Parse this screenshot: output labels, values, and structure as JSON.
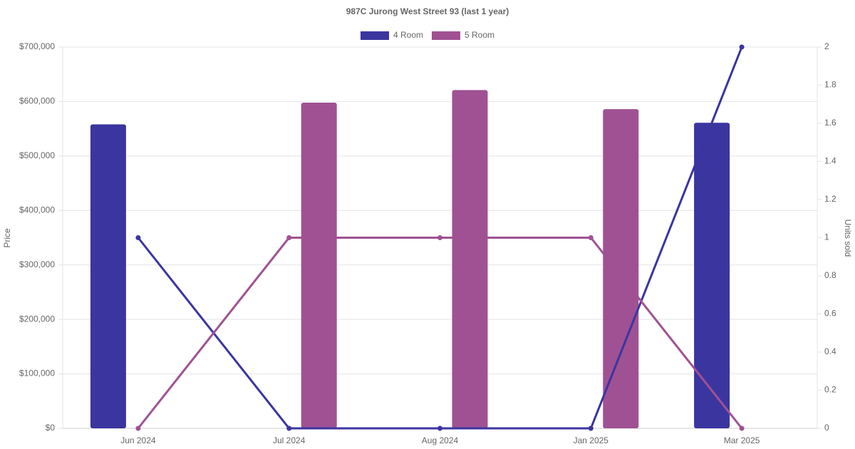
{
  "chart_data": {
    "type": "bar-line",
    "title": "987C Jurong West Street 93 (last 1 year)",
    "categories": [
      "Jun 2024",
      "Jul 2024",
      "Aug 2024",
      "Jan 2025",
      "Mar 2025"
    ],
    "series": [
      {
        "name": "4 Room",
        "color": "#3b35a0",
        "values": [
          558000,
          null,
          null,
          null,
          561000
        ],
        "units_sold": [
          1,
          0,
          0,
          0,
          2
        ]
      },
      {
        "name": "5 Room",
        "color": "#a05193",
        "values": [
          null,
          598000,
          621000,
          586000,
          null
        ],
        "units_sold": [
          0,
          1,
          1,
          1,
          0
        ]
      }
    ],
    "ylabel": "Price",
    "y2label": "Units sold",
    "ylim": [
      0,
      700000
    ],
    "yticks": [
      {
        "value": 0,
        "label": "$0"
      },
      {
        "value": 100000,
        "label": "$100,000"
      },
      {
        "value": 200000,
        "label": "$200,000"
      },
      {
        "value": 300000,
        "label": "$300,000"
      },
      {
        "value": 400000,
        "label": "$400,000"
      },
      {
        "value": 500000,
        "label": "$500,000"
      },
      {
        "value": 600000,
        "label": "$600,000"
      },
      {
        "value": 700000,
        "label": "$700,000"
      }
    ],
    "y2lim": [
      0,
      2
    ],
    "y2ticks": [
      0,
      0.2,
      0.4,
      0.6,
      0.8,
      1,
      1.2,
      1.4,
      1.6,
      1.8,
      2
    ],
    "grid": true
  }
}
